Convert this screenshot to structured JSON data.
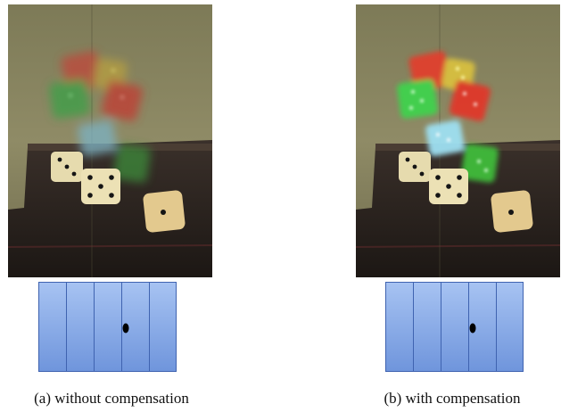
{
  "figure": {
    "panels": [
      {
        "id": "a",
        "caption": "(a)  without compensation",
        "compensation": false,
        "hologram_color_glow": "dim",
        "stripe_count": 5
      },
      {
        "id": "b",
        "caption": "(b)  with compensation",
        "compensation": true,
        "hologram_color_glow": "bright",
        "stripe_count": 5
      }
    ],
    "colors": {
      "wall": "#8a8763",
      "table": "#2e2520",
      "hologram_red": "#d23a2e",
      "hologram_green": "#3ac04a",
      "hologram_cyan": "#8fd2e6",
      "real_dice": "#e8dcb0",
      "pips": "#151515",
      "stripe_fill": "#8fb0e8",
      "stripe_edge": "#3f63b0",
      "hole": "#000000"
    }
  }
}
